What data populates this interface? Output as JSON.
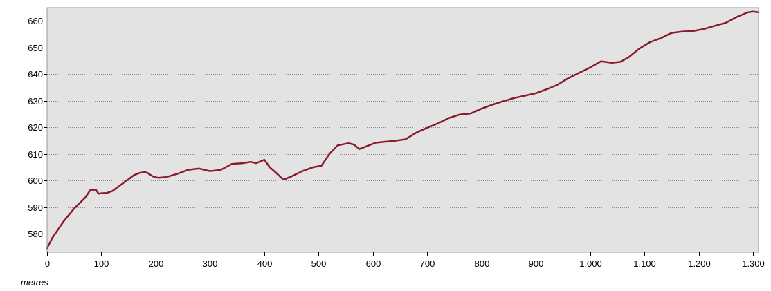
{
  "chart_data": {
    "type": "line",
    "title": "",
    "xlabel": "metres",
    "ylabel": "",
    "xlim": [
      0,
      1310
    ],
    "ylim": [
      573,
      665
    ],
    "grid": true,
    "legend": "none",
    "colors": {
      "plot_background": "#e3e3e3",
      "line": "#8b1a2b",
      "grid": "#8a8a8a",
      "frame": "#9a9a9a"
    },
    "x_ticks": [
      {
        "value": 0,
        "label": "0"
      },
      {
        "value": 100,
        "label": "100"
      },
      {
        "value": 200,
        "label": "200"
      },
      {
        "value": 300,
        "label": "300"
      },
      {
        "value": 400,
        "label": "400"
      },
      {
        "value": 500,
        "label": "500"
      },
      {
        "value": 600,
        "label": "600"
      },
      {
        "value": 700,
        "label": "700"
      },
      {
        "value": 800,
        "label": "800"
      },
      {
        "value": 900,
        "label": "900"
      },
      {
        "value": 1000,
        "label": "1.000"
      },
      {
        "value": 1100,
        "label": "1.100"
      },
      {
        "value": 1200,
        "label": "1.200"
      },
      {
        "value": 1300,
        "label": "1.300"
      }
    ],
    "y_ticks": [
      {
        "value": 580,
        "label": "580"
      },
      {
        "value": 590,
        "label": "590"
      },
      {
        "value": 600,
        "label": "600"
      },
      {
        "value": 610,
        "label": "610"
      },
      {
        "value": 620,
        "label": "620"
      },
      {
        "value": 630,
        "label": "630"
      },
      {
        "value": 640,
        "label": "640"
      },
      {
        "value": 650,
        "label": "650"
      },
      {
        "value": 660,
        "label": "660"
      }
    ],
    "series": [
      {
        "x": [
          0,
          10,
          20,
          30,
          40,
          50,
          60,
          70,
          80,
          90,
          95,
          100,
          110,
          120,
          130,
          140,
          150,
          160,
          170,
          180,
          185,
          195,
          205,
          220,
          240,
          260,
          280,
          300,
          320,
          340,
          360,
          375,
          385,
          400,
          410,
          420,
          435,
          450,
          470,
          490,
          505,
          520,
          535,
          555,
          565,
          575,
          590,
          605,
          620,
          640,
          660,
          680,
          700,
          720,
          740,
          760,
          780,
          800,
          820,
          840,
          860,
          880,
          900,
          920,
          940,
          960,
          980,
          1000,
          1020,
          1040,
          1055,
          1070,
          1090,
          1110,
          1130,
          1150,
          1170,
          1190,
          1210,
          1230,
          1250,
          1270,
          1290,
          1300,
          1310
        ],
        "y": [
          574.5,
          578.5,
          581.5,
          584.5,
          587,
          589.5,
          591.5,
          593.5,
          596.5,
          596.5,
          595,
          595.2,
          595.3,
          596,
          597.5,
          599,
          600.5,
          602,
          602.8,
          603.2,
          602.8,
          601.5,
          601,
          601.3,
          602.5,
          604,
          604.5,
          603.5,
          604,
          606.2,
          606.5,
          607,
          606.5,
          607.8,
          605,
          603.2,
          600.3,
          601.5,
          603.5,
          605,
          605.5,
          610,
          613.2,
          614,
          613.5,
          611.8,
          613,
          614.2,
          614.5,
          614.9,
          615.5,
          618,
          619.8,
          621.5,
          623.5,
          624.8,
          625.2,
          627,
          628.5,
          629.8,
          631,
          631.9,
          632.8,
          634.3,
          636,
          638.5,
          640.5,
          642.5,
          644.8,
          644.3,
          644.6,
          646.2,
          649.5,
          652,
          653.5,
          655.5,
          656,
          656.2,
          657,
          658.2,
          659.3,
          661.5,
          663.2,
          663.5,
          663.2
        ]
      }
    ]
  }
}
